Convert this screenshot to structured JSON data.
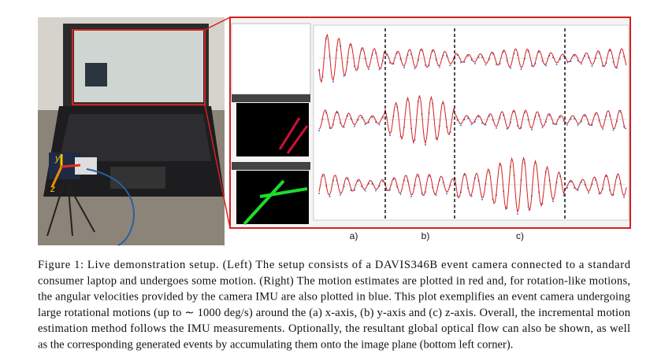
{
  "figure": {
    "photo_axis_labels": [
      "y",
      "z"
    ],
    "panel_labels": [
      "a)",
      "b)",
      "c)"
    ],
    "caption_lines": [
      "Figure 1: Live demonstration setup. (Left) The setup consists of a DAVIS346B event camera connected to a standard",
      "consumer laptop and undergoes some motion. (Right) The motion estimates are plotted in red and, for rotation-like motions,",
      "the angular velocities provided by the camera IMU are also plotted in blue. This plot exemplifies an event camera undergoing",
      "large rotational motions (up to ∼ 1000 deg/s) around the (a) x-axis, (b) y-axis and (c) z-axis. Overall, the incremental motion",
      "estimation method follows the IMU measurements. Optionally, the resultant global optical flow can also be shown, as well",
      "as the corresponding generated events by accumulating them onto the image plane (bottom left corner)."
    ]
  }
}
